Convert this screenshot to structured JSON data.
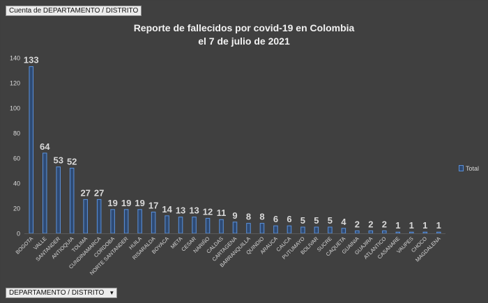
{
  "pivot": {
    "value_field_button": "Cuenta de DEPARTAMENTO / DISTRITO",
    "axis_field_button": "DEPARTAMENTO / DISTRITO",
    "axis_field_dropdown_icon": "▼"
  },
  "chart_data": {
    "type": "bar",
    "title_lines": [
      "Reporte de fallecidos por covid-19 en Colombia",
      "el 7 de julio de 2021"
    ],
    "xlabel": "",
    "ylabel": "",
    "ylim": [
      0,
      140
    ],
    "yticks": [
      0,
      20,
      40,
      60,
      80,
      100,
      120,
      140
    ],
    "grid": false,
    "legend_position": "right",
    "colors": {
      "bar_fill": "#2e4a73",
      "bar_edge": "#5b92dd",
      "axis_text": "#d9d9d9",
      "data_label": "#d9d9d9",
      "background": "#404040"
    },
    "categories": [
      "BOGOTA",
      "VALLE",
      "SANTANDER",
      "ANTIOQUIA",
      "TOLIMA",
      "CUNDINAMARCA",
      "CORDOBA",
      "NORTE SANTANDER",
      "HUILA",
      "RISARALDA",
      "BOYACA",
      "META",
      "CESAR",
      "NARIÑO",
      "CALDAS",
      "CARTAGENA",
      "BARRANQUILLA",
      "QUINDIO",
      "ARAUCA",
      "CAUCA",
      "PUTUMAYO",
      "BOLIVAR",
      "SUCRE",
      "CAQUETA",
      "GUAINIA",
      "GUAJIRA",
      "ATLANTICO",
      "CASANARE",
      "VAUPES",
      "CHOCO",
      "MAGDALENA"
    ],
    "series": [
      {
        "name": "Total",
        "values": [
          133,
          64,
          53,
          52,
          27,
          27,
          19,
          19,
          19,
          17,
          14,
          13,
          13,
          12,
          11,
          9,
          8,
          8,
          6,
          6,
          5,
          5,
          5,
          4,
          2,
          2,
          2,
          1,
          1,
          1,
          1
        ]
      }
    ]
  }
}
